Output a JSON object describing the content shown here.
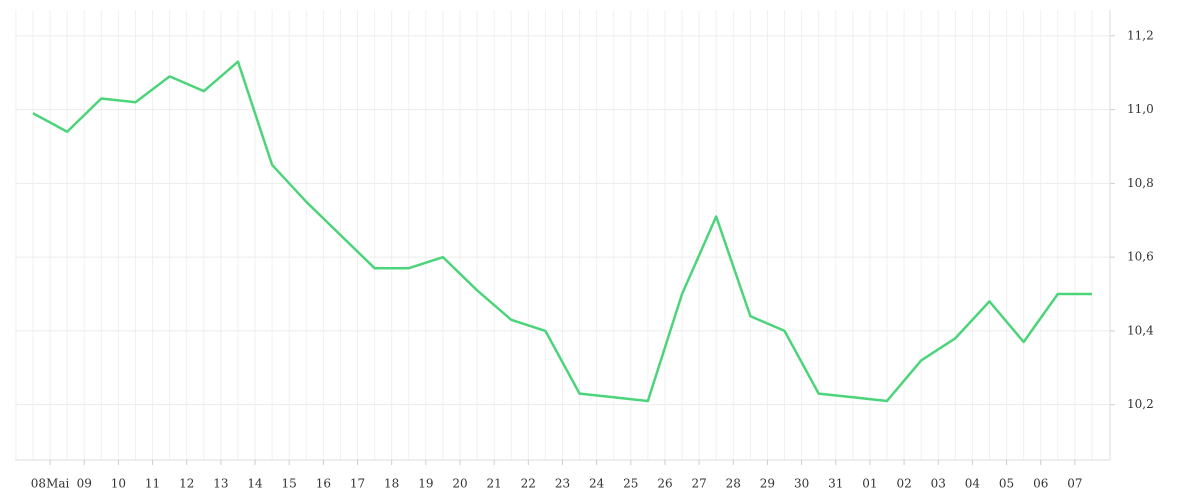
{
  "chart_data": {
    "type": "line",
    "categories": [
      null,
      "08Mai",
      "09",
      "10",
      "11",
      "12",
      "13",
      "14",
      "15",
      "16",
      "17",
      "18",
      "19",
      "20",
      "21",
      "22",
      "23",
      "24",
      "25",
      "26",
      "27",
      "28",
      "29",
      "30",
      "31",
      "01",
      "02",
      "03",
      "04",
      "05",
      "06",
      "07"
    ],
    "values": [
      10.99,
      10.94,
      11.03,
      11.02,
      11.09,
      11.05,
      11.13,
      10.85,
      10.75,
      10.66,
      10.57,
      10.57,
      10.6,
      10.51,
      10.43,
      10.4,
      10.23,
      10.22,
      10.21,
      10.5,
      10.71,
      10.44,
      10.4,
      10.23,
      10.22,
      10.21,
      10.32,
      10.38,
      10.48,
      10.37,
      10.5,
      10.5
    ],
    "color": "#4cd47a",
    "ylim": [
      10.05,
      11.27
    ],
    "yticks": [
      {
        "value": 10.2,
        "label": "10,2"
      },
      {
        "value": 10.4,
        "label": "10,4"
      },
      {
        "value": 10.6,
        "label": "10,6"
      },
      {
        "value": 10.8,
        "label": "10,8"
      },
      {
        "value": 11.0,
        "label": "11,0"
      },
      {
        "value": 11.2,
        "label": "11,2"
      }
    ],
    "grid": true
  }
}
